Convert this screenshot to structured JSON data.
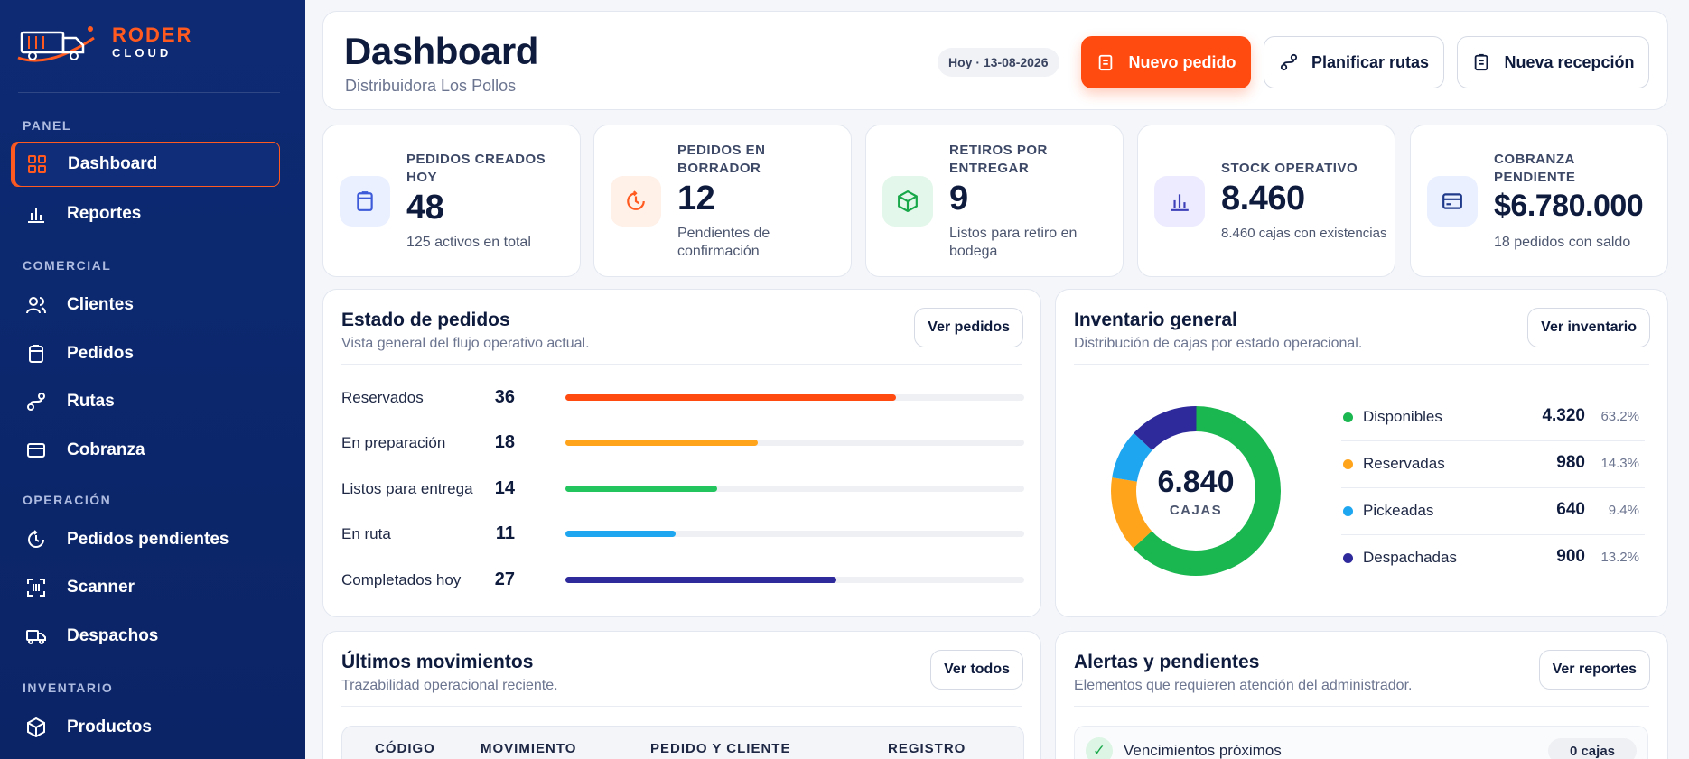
{
  "brand": {
    "name": "RODER",
    "sub": "CLOUD"
  },
  "sidebar": {
    "sections": [
      {
        "title": "PANEL"
      },
      {
        "title": "COMERCIAL"
      },
      {
        "title": "OPERACIÓN"
      },
      {
        "title": "INVENTARIO"
      }
    ],
    "items": [
      {
        "label": "Dashboard",
        "icon": "grid-icon",
        "active": true
      },
      {
        "label": "Reportes",
        "icon": "bar-chart-icon"
      },
      {
        "label": "Clientes",
        "icon": "users-icon"
      },
      {
        "label": "Pedidos",
        "icon": "clipboard-icon"
      },
      {
        "label": "Rutas",
        "icon": "route-icon"
      },
      {
        "label": "Cobranza",
        "icon": "credit-card-icon"
      },
      {
        "label": "Pedidos pendientes",
        "icon": "clock-refresh-icon"
      },
      {
        "label": "Scanner",
        "icon": "scanner-icon"
      },
      {
        "label": "Despachos",
        "icon": "truck-icon"
      },
      {
        "label": "Productos",
        "icon": "box-icon"
      }
    ]
  },
  "header": {
    "title": "Dashboard",
    "subtitle": "Distribuidora Los Pollos",
    "date_chip": "Hoy · 13-08-2026",
    "buttons": {
      "new_order": "Nuevo pedido",
      "plan_routes": "Planificar rutas",
      "new_reception": "Nueva recepción"
    }
  },
  "kpis": [
    {
      "label": "PEDIDOS CREADOS HOY",
      "value": "48",
      "note": "125 activos en total",
      "icon": "clipboard-icon",
      "color": "#3d5bd9",
      "bg": "#eaf0ff"
    },
    {
      "label": "PEDIDOS EN BORRADOR",
      "value": "12",
      "note": "Pendientes de confirmación",
      "icon": "clock-refresh-icon",
      "color": "#ff5a1f",
      "bg": "#fff0e8"
    },
    {
      "label": "RETIROS POR ENTREGAR",
      "value": "9",
      "note": "Listos para retiro en bodega",
      "icon": "box-icon",
      "color": "#18a84a",
      "bg": "#e3f7ea"
    },
    {
      "label": "STOCK OPERATIVO",
      "value": "8.460",
      "note": "8.460 cajas con existencias",
      "icon": "bar-chart-icon",
      "color": "#3d3fb8",
      "bg": "#ecebff"
    },
    {
      "label": "COBRANZA PENDIENTE",
      "value": "$6.780.000",
      "note": "18 pedidos con saldo",
      "icon": "credit-card-icon",
      "color": "#1f3a8a",
      "bg": "#eaf0ff"
    }
  ],
  "order_status": {
    "title": "Estado de pedidos",
    "subtitle": "Vista general del flujo operativo actual.",
    "button": "Ver pedidos",
    "rows": [
      {
        "label": "Reservados",
        "value": 36,
        "color": "#ff4a10",
        "fraction": 0.72
      },
      {
        "label": "En preparación",
        "value": 18,
        "color": "#ffa41b",
        "fraction": 0.42
      },
      {
        "label": "Listos para entrega",
        "value": 14,
        "color": "#22c55e",
        "fraction": 0.33
      },
      {
        "label": "En ruta",
        "value": 11,
        "color": "#1ea7f0",
        "fraction": 0.24
      },
      {
        "label": "Completados hoy",
        "value": 27,
        "color": "#2f2a9c",
        "fraction": 0.59
      }
    ]
  },
  "inventory": {
    "title": "Inventario general",
    "subtitle": "Distribución de cajas por estado operacional.",
    "button": "Ver inventario",
    "total": "6.840",
    "total_label": "CAJAS",
    "segments": [
      {
        "label": "Disponibles",
        "value": "4.320",
        "pct": "63.2%",
        "share": 0.632,
        "color": "#1ab64f"
      },
      {
        "label": "Reservadas",
        "value": "980",
        "pct": "14.3%",
        "share": 0.143,
        "color": "#ffa41b"
      },
      {
        "label": "Pickeadas",
        "value": "640",
        "pct": "9.4%",
        "share": 0.094,
        "color": "#1ea7f0"
      },
      {
        "label": "Despachadas",
        "value": "900",
        "pct": "13.2%",
        "share": 0.132,
        "color": "#2f2a9c"
      }
    ]
  },
  "movements": {
    "title": "Últimos movimientos",
    "subtitle": "Trazabilidad operacional reciente.",
    "button": "Ver todos",
    "columns": [
      "CÓDIGO",
      "MOVIMIENTO",
      "PEDIDO Y CLIENTE",
      "REGISTRO"
    ]
  },
  "alerts": {
    "title": "Alertas y pendientes",
    "subtitle": "Elementos que requieren atención del administrador.",
    "button": "Ver reportes",
    "items": [
      {
        "label": "Vencimientos próximos",
        "count": "0 cajas"
      }
    ]
  }
}
